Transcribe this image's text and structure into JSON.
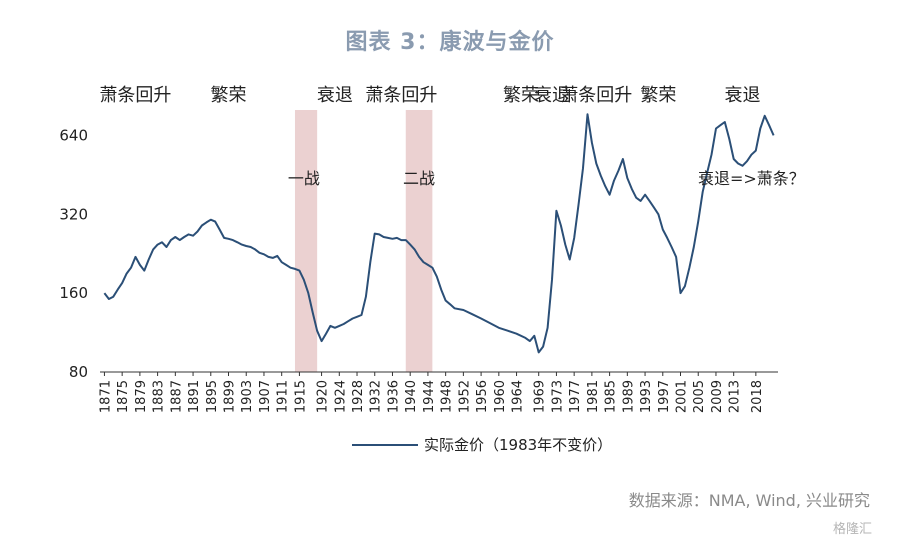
{
  "title": "图表 3：康波与金价",
  "source": "数据来源：NMA, Wind, 兴业研究",
  "watermark": "格隆汇",
  "chart_data": {
    "type": "line",
    "y_scale": "log2",
    "ylim": [
      80,
      800
    ],
    "yticks": [
      80,
      160,
      320,
      640
    ],
    "xlim": [
      1870,
      2023
    ],
    "xtick_labels": [
      "1871",
      "1875",
      "1879",
      "1883",
      "1887",
      "1891",
      "1895",
      "1899",
      "1903",
      "1907",
      "1911",
      "1915",
      "1920",
      "1924",
      "1928",
      "1932",
      "1936",
      "1940",
      "1944",
      "1948",
      "1952",
      "1956",
      "1960",
      "1964",
      "1969",
      "1973",
      "1977",
      "1981",
      "1985",
      "1989",
      "1993",
      "1997",
      "2001",
      "2005",
      "2009",
      "2013",
      "2018"
    ],
    "series": [
      {
        "name": "实际金价（1983年不变价）",
        "color": "#2b4f77",
        "x": [
          1871,
          1872,
          1873,
          1874,
          1875,
          1876,
          1877,
          1878,
          1879,
          1880,
          1881,
          1882,
          1883,
          1884,
          1885,
          1886,
          1887,
          1888,
          1889,
          1890,
          1891,
          1892,
          1893,
          1894,
          1895,
          1896,
          1897,
          1898,
          1899,
          1900,
          1901,
          1902,
          1903,
          1904,
          1905,
          1906,
          1907,
          1908,
          1909,
          1910,
          1911,
          1912,
          1913,
          1914,
          1915,
          1916,
          1917,
          1918,
          1919,
          1920,
          1921,
          1922,
          1923,
          1924,
          1925,
          1926,
          1927,
          1928,
          1929,
          1930,
          1931,
          1932,
          1933,
          1934,
          1935,
          1936,
          1937,
          1938,
          1939,
          1940,
          1941,
          1942,
          1943,
          1944,
          1945,
          1946,
          1947,
          1948,
          1949,
          1950,
          1952,
          1954,
          1956,
          1958,
          1960,
          1962,
          1964,
          1966,
          1967,
          1968,
          1969,
          1970,
          1971,
          1972,
          1973,
          1974,
          1975,
          1976,
          1977,
          1978,
          1979,
          1980,
          1981,
          1982,
          1983,
          1984,
          1985,
          1986,
          1987,
          1988,
          1989,
          1990,
          1991,
          1992,
          1993,
          1994,
          1995,
          1996,
          1997,
          1998,
          1999,
          2000,
          2001,
          2002,
          2003,
          2004,
          2005,
          2006,
          2007,
          2008,
          2009,
          2010,
          2011,
          2012,
          2013,
          2014,
          2015,
          2016,
          2017,
          2018,
          2019,
          2020,
          2021,
          2022
        ],
        "values": [
          160,
          152,
          155,
          165,
          175,
          190,
          200,
          220,
          205,
          195,
          215,
          235,
          245,
          250,
          240,
          255,
          262,
          255,
          262,
          268,
          265,
          275,
          290,
          298,
          305,
          300,
          280,
          260,
          258,
          255,
          250,
          245,
          242,
          240,
          235,
          228,
          225,
          220,
          218,
          222,
          210,
          205,
          200,
          198,
          195,
          180,
          160,
          135,
          115,
          105,
          112,
          120,
          118,
          120,
          122,
          125,
          128,
          130,
          132,
          155,
          210,
          270,
          268,
          262,
          260,
          258,
          260,
          255,
          255,
          245,
          235,
          220,
          210,
          205,
          200,
          185,
          165,
          150,
          145,
          140,
          138,
          133,
          128,
          123,
          118,
          115,
          112,
          108,
          105,
          110,
          95,
          100,
          118,
          180,
          330,
          290,
          245,
          215,
          260,
          350,
          480,
          770,
          600,
          500,
          450,
          410,
          380,
          430,
          470,
          520,
          440,
          400,
          370,
          360,
          380,
          360,
          340,
          320,
          280,
          260,
          240,
          220,
          160,
          170,
          200,
          240,
          300,
          390,
          460,
          540,
          680,
          700,
          720,
          620,
          520,
          500,
          490,
          510,
          540,
          560,
          680,
          760,
          700,
          640
        ],
        "values_note": ""
      }
    ],
    "shaded_periods": [
      [
        1914,
        1919
      ],
      [
        1939,
        1945
      ]
    ],
    "phase_labels": [
      {
        "text": "萧条回升",
        "x": 1878
      },
      {
        "text": "繁荣",
        "x": 1899
      },
      {
        "text": "衰退",
        "x": 1923
      },
      {
        "text": "萧条回升",
        "x": 1938
      },
      {
        "text": "繁荣",
        "x": 1965
      },
      {
        "text": "衰退",
        "x": 1972
      },
      {
        "text": "萧条回升",
        "x": 1982
      },
      {
        "text": "繁荣",
        "x": 1996
      },
      {
        "text": "衰退",
        "x": 2015
      }
    ],
    "annotations": [
      {
        "text": "一战",
        "x": 1916,
        "y": 440
      },
      {
        "text": "二战",
        "x": 1942,
        "y": 440
      },
      {
        "text": "衰退=>萧条？",
        "x": 2017,
        "y": 440
      }
    ],
    "legend": {
      "label": "实际金价（1983年不变价）",
      "position": "bottom-center"
    }
  }
}
